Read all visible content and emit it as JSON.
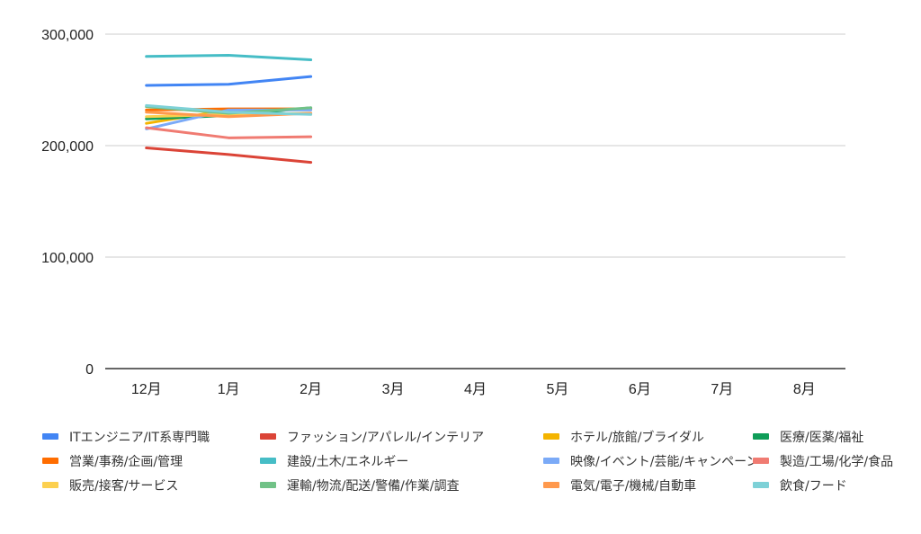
{
  "chart_data": {
    "type": "line",
    "title": "",
    "xlabel": "",
    "ylabel": "",
    "categories": [
      "12月",
      "1月",
      "2月",
      "3月",
      "4月",
      "5月",
      "6月",
      "7月",
      "8月"
    ],
    "y_ticks": [
      "0",
      "100,000",
      "200,000",
      "300,000"
    ],
    "ylim": [
      0,
      300000
    ],
    "grid": true,
    "legend_position": "bottom",
    "series": [
      {
        "name": "ITエンジニア/IT系専門職",
        "color": "#4285f4",
        "values": [
          254000,
          255000,
          262000,
          null,
          null,
          null,
          null,
          null,
          null
        ]
      },
      {
        "name": "ファッション/アパレル/インテリア",
        "color": "#db4437",
        "values": [
          198000,
          192000,
          185000,
          null,
          null,
          null,
          null,
          null,
          null
        ]
      },
      {
        "name": "ホテル/旅館/ブライダル",
        "color": "#f4b400",
        "values": [
          220000,
          232000,
          233000,
          null,
          null,
          null,
          null,
          null,
          null
        ]
      },
      {
        "name": "医療/医薬/福祉",
        "color": "#0f9d58",
        "values": [
          224000,
          227000,
          234000,
          null,
          null,
          null,
          null,
          null,
          null
        ]
      },
      {
        "name": "営業/事務/企画/管理",
        "color": "#ff6d00",
        "values": [
          232000,
          233000,
          233000,
          null,
          null,
          null,
          null,
          null,
          null
        ]
      },
      {
        "name": "建設/土木/エネルギー",
        "color": "#46bdc6",
        "values": [
          280000,
          281000,
          277000,
          null,
          null,
          null,
          null,
          null,
          null
        ]
      },
      {
        "name": "映像/イベント/芸能/キャンペーン",
        "color": "#7baaf7",
        "values": [
          215000,
          232000,
          232000,
          null,
          null,
          null,
          null,
          null,
          null
        ]
      },
      {
        "name": "製造/工場/化学/食品",
        "color": "#f07b72",
        "values": [
          216000,
          207000,
          208000,
          null,
          null,
          null,
          null,
          null,
          null
        ]
      },
      {
        "name": "販売/接客/サービス",
        "color": "#fcd04f",
        "values": [
          226000,
          228000,
          229000,
          null,
          null,
          null,
          null,
          null,
          null
        ]
      },
      {
        "name": "運輸/物流/配送/警備/作業/調査",
        "color": "#71c287",
        "values": [
          235000,
          229000,
          234000,
          null,
          null,
          null,
          null,
          null,
          null
        ]
      },
      {
        "name": "電気/電子/機械/自動車",
        "color": "#ff994d",
        "values": [
          230000,
          226000,
          229000,
          null,
          null,
          null,
          null,
          null,
          null
        ]
      },
      {
        "name": "飲食/フード",
        "color": "#7ed1d7",
        "values": [
          236000,
          230000,
          228000,
          null,
          null,
          null,
          null,
          null,
          null
        ]
      }
    ]
  }
}
